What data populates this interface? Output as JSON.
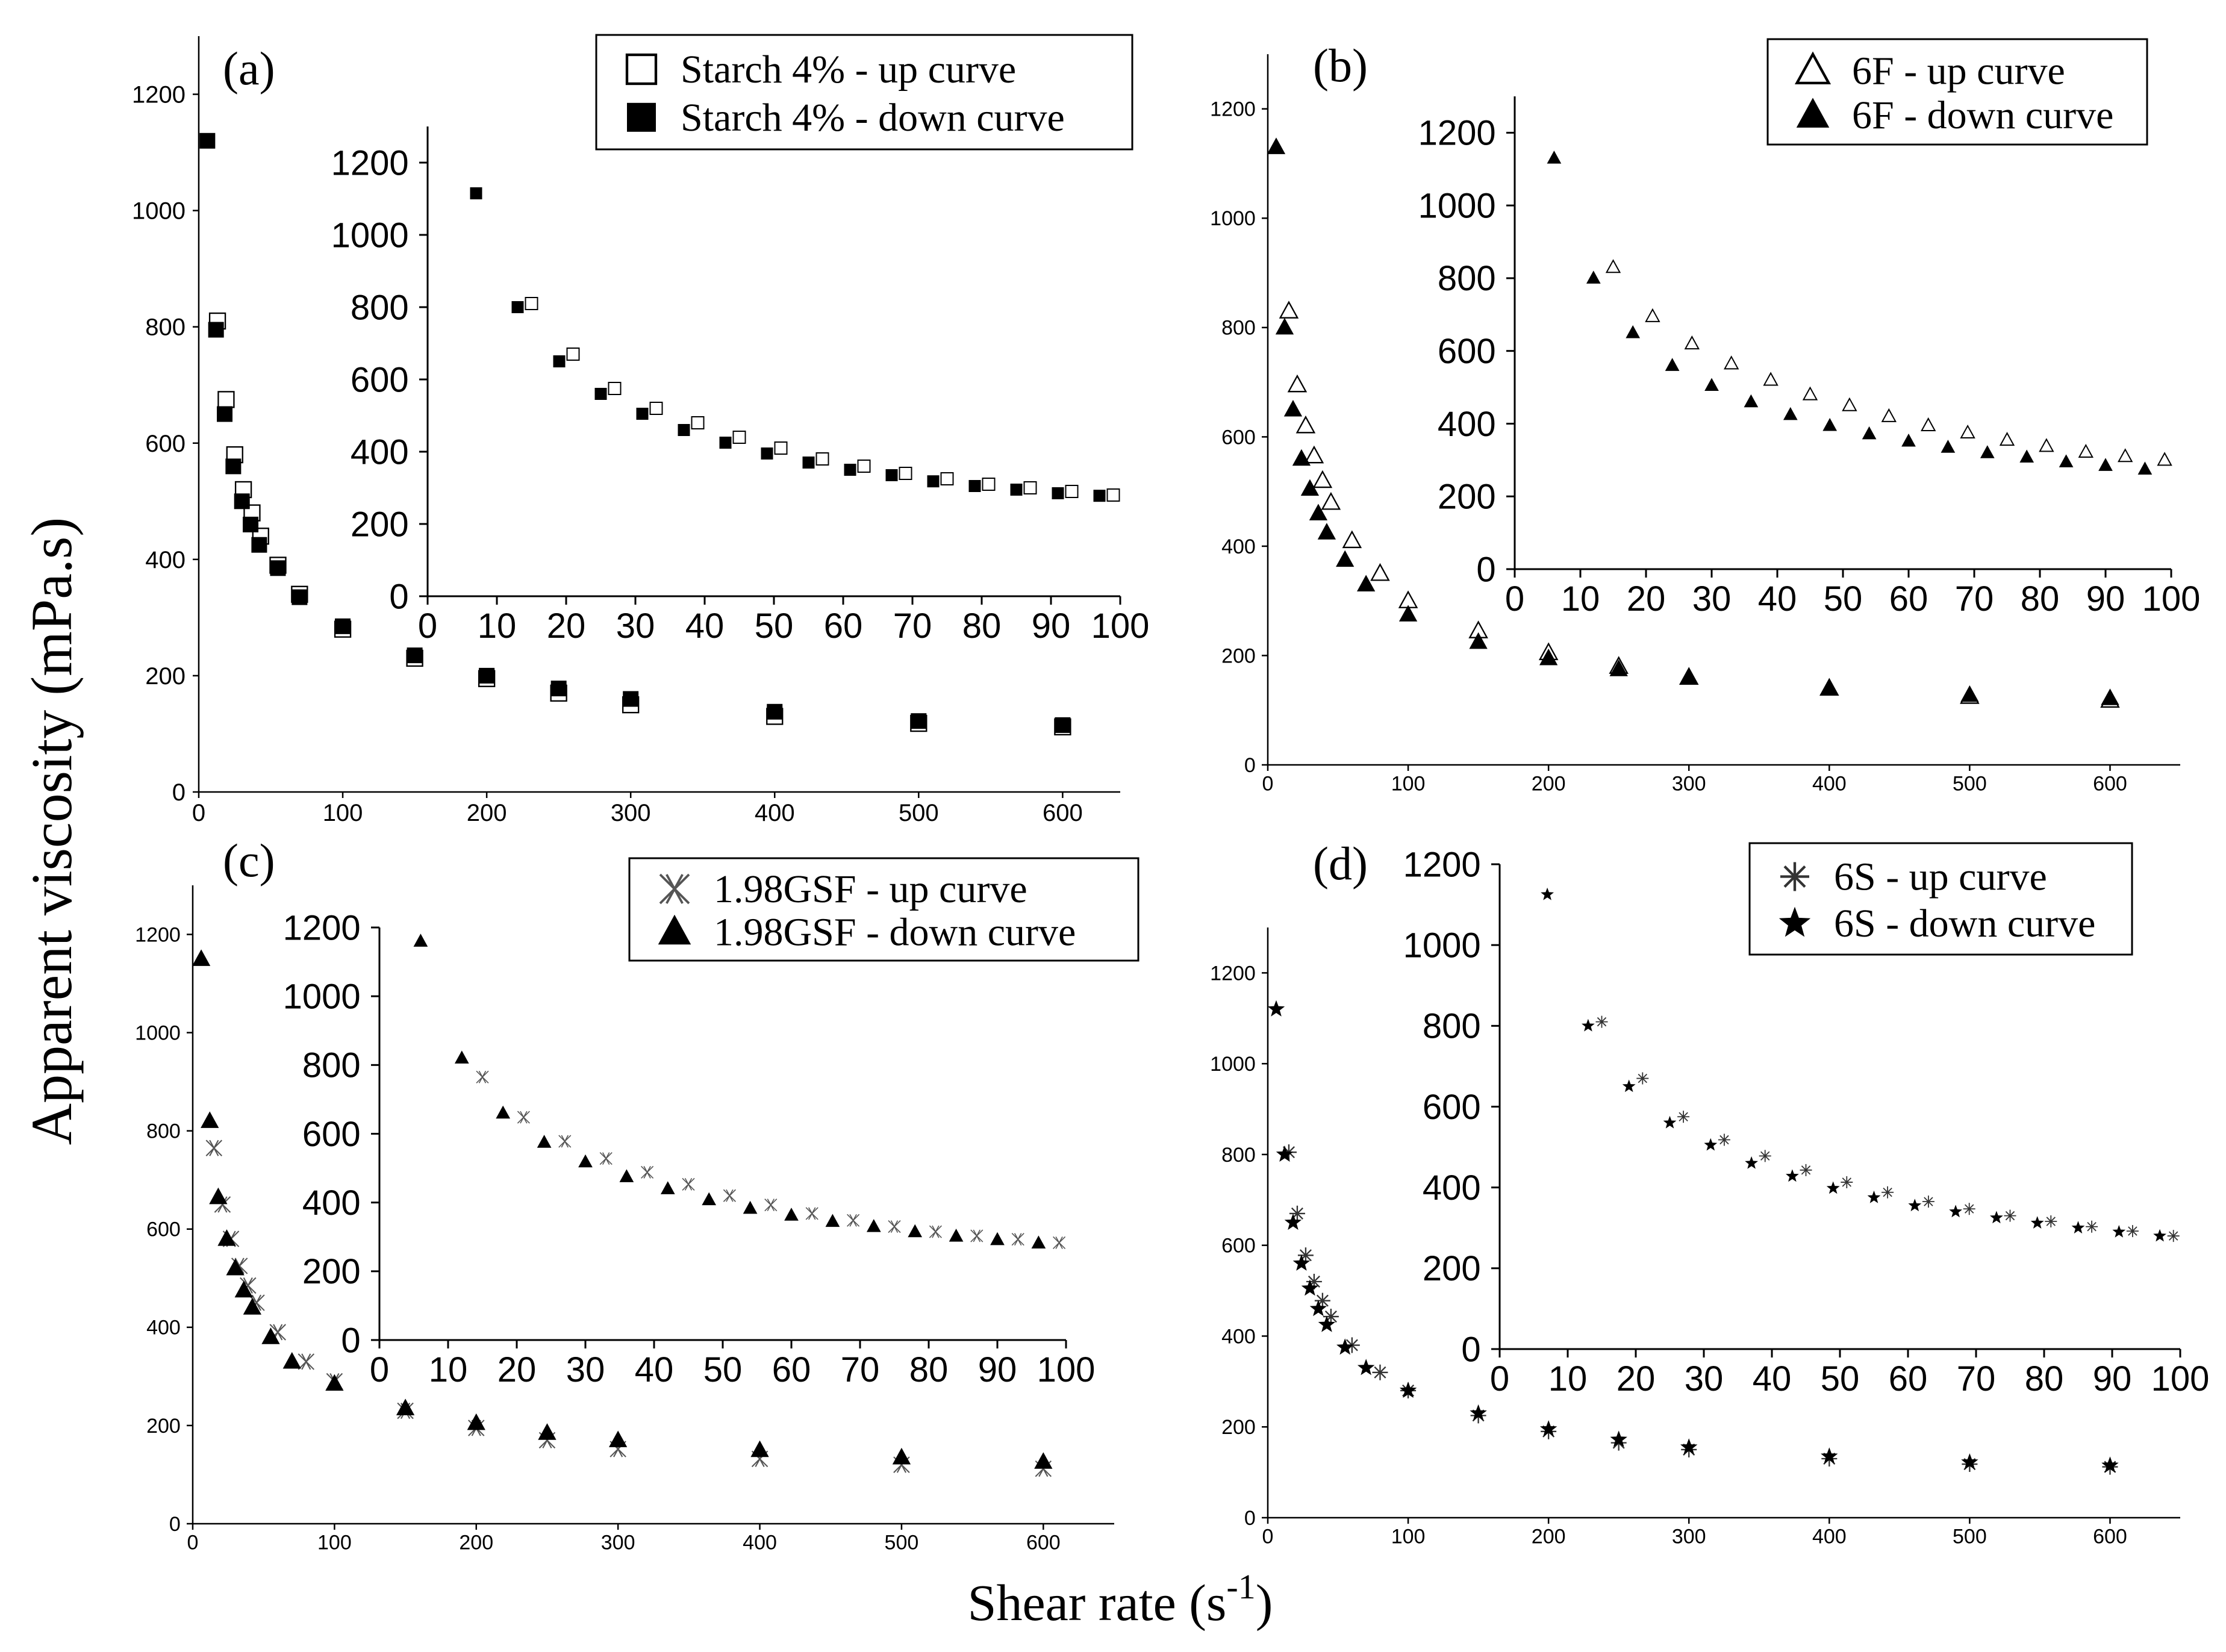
{
  "figure": {
    "ylabel": "Apparent viscosity (mPa.s)",
    "xlabel": "Shear rate (s",
    "xlabel_sup": "-1",
    "xlabel_close": ")"
  },
  "chart_data": [
    {
      "panel": "(a)",
      "type": "scatter",
      "main": {
        "xlim": [
          0,
          640
        ],
        "ylim": [
          0,
          1300
        ],
        "xticks": [
          0,
          100,
          200,
          300,
          400,
          500,
          600
        ],
        "yticks": [
          0,
          200,
          400,
          600,
          800,
          1000,
          1200
        ],
        "up": [
          [
            13,
            810
          ],
          [
            19,
            675
          ],
          [
            25,
            580
          ],
          [
            31,
            520
          ],
          [
            37,
            480
          ],
          [
            43,
            440
          ],
          [
            55,
            390
          ],
          [
            70,
            340
          ],
          [
            100,
            280
          ],
          [
            150,
            230
          ],
          [
            200,
            195
          ],
          [
            250,
            170
          ],
          [
            300,
            150
          ],
          [
            400,
            130
          ],
          [
            500,
            118
          ],
          [
            600,
            112
          ]
        ],
        "down": [
          [
            6,
            1120
          ],
          [
            12,
            795
          ],
          [
            18,
            650
          ],
          [
            24,
            560
          ],
          [
            30,
            500
          ],
          [
            36,
            460
          ],
          [
            42,
            425
          ],
          [
            55,
            385
          ],
          [
            70,
            335
          ],
          [
            100,
            285
          ],
          [
            150,
            235
          ],
          [
            200,
            200
          ],
          [
            250,
            178
          ],
          [
            300,
            160
          ],
          [
            400,
            138
          ],
          [
            500,
            122
          ],
          [
            600,
            115
          ]
        ]
      },
      "inset": {
        "xlim": [
          0,
          100
        ],
        "ylim": [
          0,
          1300
        ],
        "xticks": [
          0,
          10,
          20,
          30,
          40,
          50,
          60,
          70,
          80,
          90,
          100
        ],
        "yticks": [
          0,
          200,
          400,
          600,
          800,
          1000,
          1200
        ],
        "up": [
          [
            15,
            810
          ],
          [
            21,
            670
          ],
          [
            27,
            575
          ],
          [
            33,
            520
          ],
          [
            39,
            480
          ],
          [
            45,
            440
          ],
          [
            51,
            410
          ],
          [
            57,
            380
          ],
          [
            63,
            360
          ],
          [
            69,
            340
          ],
          [
            75,
            325
          ],
          [
            81,
            310
          ],
          [
            87,
            300
          ],
          [
            93,
            290
          ],
          [
            99,
            280
          ]
        ],
        "down": [
          [
            7,
            1115
          ],
          [
            13,
            800
          ],
          [
            19,
            650
          ],
          [
            25,
            560
          ],
          [
            31,
            505
          ],
          [
            37,
            460
          ],
          [
            43,
            425
          ],
          [
            49,
            395
          ],
          [
            55,
            370
          ],
          [
            61,
            350
          ],
          [
            67,
            335
          ],
          [
            73,
            318
          ],
          [
            79,
            305
          ],
          [
            85,
            295
          ],
          [
            91,
            285
          ],
          [
            97,
            278
          ]
        ]
      },
      "legend": [
        {
          "label": "Starch 4% - up curve",
          "marker": "open-square"
        },
        {
          "label": "Starch 4% - down curve",
          "marker": "filled-square"
        }
      ]
    },
    {
      "panel": "(b)",
      "type": "scatter",
      "main": {
        "xlim": [
          0,
          650
        ],
        "ylim": [
          0,
          1300
        ],
        "xticks": [
          0,
          100,
          200,
          300,
          400,
          500,
          600
        ],
        "yticks": [
          0,
          200,
          400,
          600,
          800,
          1000,
          1200
        ],
        "up": [
          [
            15,
            830
          ],
          [
            21,
            695
          ],
          [
            27,
            620
          ],
          [
            33,
            565
          ],
          [
            39,
            520
          ],
          [
            45,
            480
          ],
          [
            60,
            410
          ],
          [
            80,
            350
          ],
          [
            100,
            300
          ],
          [
            150,
            245
          ],
          [
            200,
            205
          ],
          [
            250,
            180
          ],
          [
            300,
            160
          ],
          [
            400,
            140
          ],
          [
            500,
            125
          ],
          [
            600,
            118
          ]
        ],
        "down": [
          [
            6,
            1130
          ],
          [
            12,
            800
          ],
          [
            18,
            650
          ],
          [
            24,
            560
          ],
          [
            30,
            505
          ],
          [
            36,
            460
          ],
          [
            42,
            425
          ],
          [
            55,
            375
          ],
          [
            70,
            330
          ],
          [
            100,
            275
          ],
          [
            150,
            225
          ],
          [
            200,
            195
          ],
          [
            250,
            175
          ],
          [
            300,
            160
          ],
          [
            400,
            140
          ],
          [
            500,
            128
          ],
          [
            600,
            122
          ]
        ]
      },
      "inset": {
        "xlim": [
          0,
          100
        ],
        "ylim": [
          0,
          1300
        ],
        "xticks": [
          0,
          10,
          20,
          30,
          40,
          50,
          60,
          70,
          80,
          90,
          100
        ],
        "yticks": [
          0,
          200,
          400,
          600,
          800,
          1000,
          1200
        ],
        "up": [
          [
            15,
            830
          ],
          [
            21,
            695
          ],
          [
            27,
            620
          ],
          [
            33,
            565
          ],
          [
            39,
            520
          ],
          [
            45,
            480
          ],
          [
            51,
            450
          ],
          [
            57,
            420
          ],
          [
            63,
            395
          ],
          [
            69,
            375
          ],
          [
            75,
            355
          ],
          [
            81,
            338
          ],
          [
            87,
            322
          ],
          [
            93,
            310
          ],
          [
            99,
            300
          ]
        ],
        "down": [
          [
            6,
            1130
          ],
          [
            12,
            800
          ],
          [
            18,
            650
          ],
          [
            24,
            560
          ],
          [
            30,
            505
          ],
          [
            36,
            460
          ],
          [
            42,
            425
          ],
          [
            48,
            395
          ],
          [
            54,
            372
          ],
          [
            60,
            352
          ],
          [
            66,
            335
          ],
          [
            72,
            320
          ],
          [
            78,
            308
          ],
          [
            84,
            295
          ],
          [
            90,
            285
          ],
          [
            96,
            275
          ]
        ]
      },
      "legend": [
        {
          "label": "6F - up curve",
          "marker": "open-triangle"
        },
        {
          "label": "6F - down curve",
          "marker": "filled-triangle"
        }
      ]
    },
    {
      "panel": "(c)",
      "type": "scatter",
      "main": {
        "xlim": [
          0,
          650
        ],
        "ylim": [
          0,
          1300
        ],
        "xticks": [
          0,
          100,
          200,
          300,
          400,
          500,
          600
        ],
        "yticks": [
          0,
          200,
          400,
          600,
          800,
          1000,
          1200
        ],
        "up": [
          [
            15,
            765
          ],
          [
            21,
            650
          ],
          [
            27,
            580
          ],
          [
            33,
            525
          ],
          [
            39,
            485
          ],
          [
            45,
            450
          ],
          [
            60,
            390
          ],
          [
            80,
            330
          ],
          [
            100,
            290
          ],
          [
            150,
            230
          ],
          [
            200,
            195
          ],
          [
            250,
            170
          ],
          [
            300,
            152
          ],
          [
            400,
            132
          ],
          [
            500,
            120
          ],
          [
            600,
            112
          ]
        ],
        "down": [
          [
            6,
            1150
          ],
          [
            12,
            820
          ],
          [
            18,
            665
          ],
          [
            24,
            580
          ],
          [
            30,
            520
          ],
          [
            36,
            475
          ],
          [
            42,
            440
          ],
          [
            55,
            380
          ],
          [
            70,
            330
          ],
          [
            100,
            285
          ],
          [
            150,
            235
          ],
          [
            200,
            205
          ],
          [
            250,
            185
          ],
          [
            300,
            170
          ],
          [
            400,
            150
          ],
          [
            500,
            135
          ],
          [
            600,
            126
          ]
        ]
      },
      "inset": {
        "xlim": [
          0,
          100
        ],
        "ylim": [
          0,
          1200
        ],
        "xticks": [
          0,
          10,
          20,
          30,
          40,
          50,
          60,
          70,
          80,
          90,
          100
        ],
        "yticks": [
          0,
          200,
          400,
          600,
          800,
          1000,
          1200
        ],
        "up": [
          [
            15,
            765
          ],
          [
            21,
            648
          ],
          [
            27,
            578
          ],
          [
            33,
            528
          ],
          [
            39,
            488
          ],
          [
            45,
            453
          ],
          [
            51,
            420
          ],
          [
            57,
            393
          ],
          [
            63,
            368
          ],
          [
            69,
            348
          ],
          [
            75,
            330
          ],
          [
            81,
            315
          ],
          [
            87,
            303
          ],
          [
            93,
            293
          ],
          [
            99,
            283
          ]
        ],
        "down": [
          [
            6,
            1160
          ],
          [
            12,
            820
          ],
          [
            18,
            660
          ],
          [
            24,
            575
          ],
          [
            30,
            518
          ],
          [
            36,
            475
          ],
          [
            42,
            440
          ],
          [
            48,
            408
          ],
          [
            54,
            383
          ],
          [
            60,
            363
          ],
          [
            66,
            345
          ],
          [
            72,
            330
          ],
          [
            78,
            315
          ],
          [
            84,
            302
          ],
          [
            90,
            292
          ],
          [
            96,
            282
          ]
        ]
      },
      "legend": [
        {
          "label": "1.98GSF - up curve",
          "marker": "cross-x"
        },
        {
          "label": "1.98GSF - down curve",
          "marker": "filled-triangle"
        }
      ]
    },
    {
      "panel": "(d)",
      "type": "scatter",
      "main": {
        "xlim": [
          0,
          650
        ],
        "ylim": [
          0,
          1300
        ],
        "xticks": [
          0,
          100,
          200,
          300,
          400,
          500,
          600
        ],
        "yticks": [
          0,
          200,
          400,
          600,
          800,
          1000,
          1200
        ],
        "up": [
          [
            15,
            805
          ],
          [
            21,
            670
          ],
          [
            27,
            578
          ],
          [
            33,
            520
          ],
          [
            39,
            478
          ],
          [
            45,
            443
          ],
          [
            60,
            380
          ],
          [
            80,
            320
          ],
          [
            100,
            280
          ],
          [
            150,
            225
          ],
          [
            200,
            190
          ],
          [
            250,
            165
          ],
          [
            300,
            150
          ],
          [
            400,
            130
          ],
          [
            500,
            118
          ],
          [
            600,
            112
          ]
        ],
        "down": [
          [
            6,
            1120
          ],
          [
            12,
            800
          ],
          [
            18,
            650
          ],
          [
            24,
            560
          ],
          [
            30,
            505
          ],
          [
            36,
            460
          ],
          [
            42,
            425
          ],
          [
            55,
            375
          ],
          [
            70,
            330
          ],
          [
            100,
            280
          ],
          [
            150,
            230
          ],
          [
            200,
            195
          ],
          [
            250,
            172
          ],
          [
            300,
            155
          ],
          [
            400,
            135
          ],
          [
            500,
            122
          ],
          [
            600,
            115
          ]
        ]
      },
      "inset": {
        "xlim": [
          0,
          100
        ],
        "ylim": [
          0,
          1200
        ],
        "xticks": [
          0,
          10,
          20,
          30,
          40,
          50,
          60,
          70,
          80,
          90,
          100
        ],
        "yticks": [
          0,
          200,
          400,
          600,
          800,
          1000,
          1200
        ],
        "up": [
          [
            15,
            810
          ],
          [
            21,
            670
          ],
          [
            27,
            575
          ],
          [
            33,
            518
          ],
          [
            39,
            478
          ],
          [
            45,
            443
          ],
          [
            51,
            413
          ],
          [
            57,
            388
          ],
          [
            63,
            365
          ],
          [
            69,
            347
          ],
          [
            75,
            330
          ],
          [
            81,
            316
          ],
          [
            87,
            303
          ],
          [
            93,
            292
          ],
          [
            99,
            280
          ]
        ],
        "down": [
          [
            7,
            1125
          ],
          [
            13,
            800
          ],
          [
            19,
            650
          ],
          [
            25,
            560
          ],
          [
            31,
            505
          ],
          [
            37,
            460
          ],
          [
            43,
            428
          ],
          [
            49,
            398
          ],
          [
            55,
            375
          ],
          [
            61,
            355
          ],
          [
            67,
            340
          ],
          [
            73,
            325
          ],
          [
            79,
            312
          ],
          [
            85,
            300
          ],
          [
            91,
            290
          ],
          [
            97,
            280
          ]
        ]
      },
      "legend": [
        {
          "label": "6S - up curve",
          "marker": "asterisk"
        },
        {
          "label": "6S - down curve",
          "marker": "filled-star"
        }
      ]
    }
  ]
}
